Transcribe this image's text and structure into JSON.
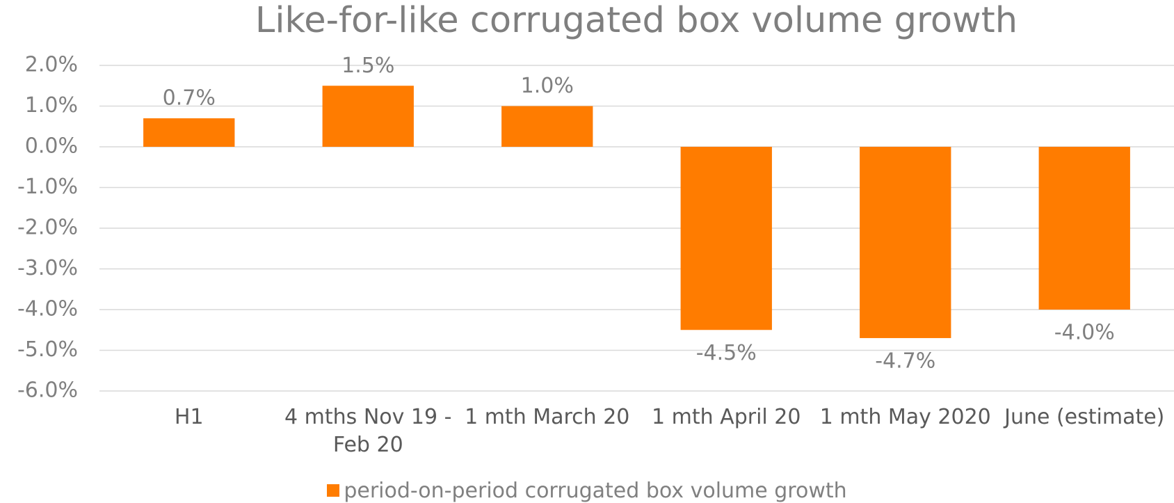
{
  "chart_data": {
    "type": "bar",
    "title": "Like-for-like corrugated box volume growth",
    "categories": [
      "H1",
      "4 mths Nov 19 - Feb 20",
      "1 mth March 20",
      "1 mth April 20",
      "1 mth May 2020",
      "June (estimate)"
    ],
    "series": [
      {
        "name": "period-on-period corrugated box volume growth",
        "color": "#ff7c00",
        "values": [
          0.7,
          1.5,
          1.0,
          -4.5,
          -4.7,
          -4.0
        ],
        "value_labels": [
          "0.7%",
          "1.5%",
          "1.0%",
          "-4.5%",
          "-4.7%",
          "-4.0%"
        ]
      }
    ],
    "ylim": [
      -6,
      2
    ],
    "yticks": [
      {
        "value": -6,
        "label": "-6.0%"
      },
      {
        "value": -5,
        "label": "-5.0%"
      },
      {
        "value": -4,
        "label": "-4.0%"
      },
      {
        "value": -3,
        "label": "-3.0%"
      },
      {
        "value": -2,
        "label": "-2.0%"
      },
      {
        "value": -1,
        "label": "-1.0%"
      },
      {
        "value": 0,
        "label": "0.0%"
      },
      {
        "value": 1,
        "label": "1.0%"
      },
      {
        "value": 2,
        "label": "2.0%"
      }
    ],
    "grid": true,
    "legend": "bottom"
  }
}
